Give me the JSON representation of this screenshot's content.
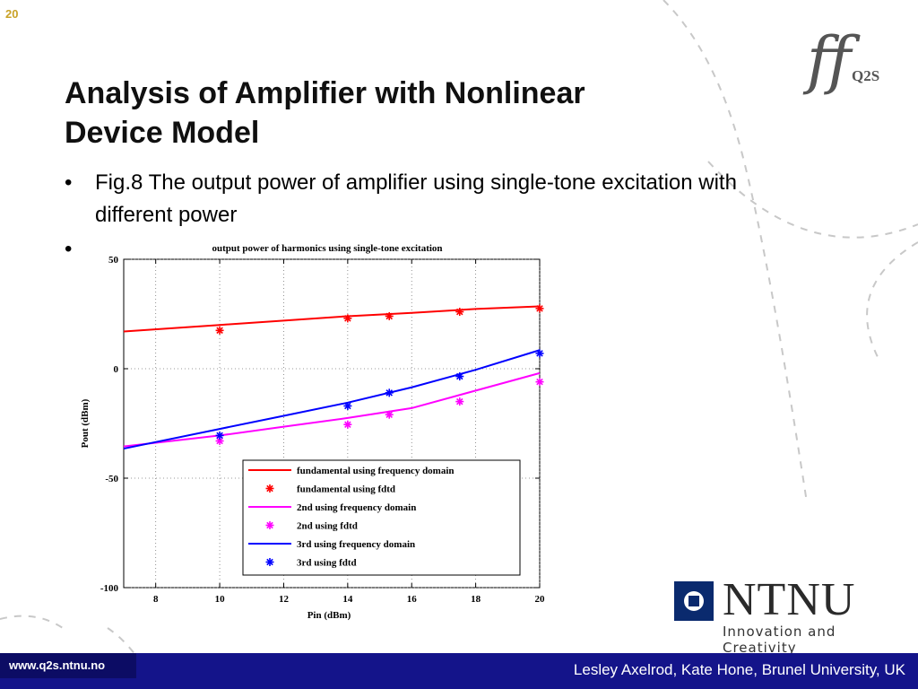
{
  "slide": {
    "number": "20",
    "title_lines": [
      "Analysis of Amplifier with Nonlinear",
      "Device Model"
    ],
    "bullets": [
      "Fig.8 The output power of amplifier using single-tone excitation with different power",
      ""
    ],
    "bullet_symbol": "•",
    "logo": {
      "ff": "ff",
      "text": "Q2S"
    },
    "ntnu": {
      "name": "NTNU",
      "tagline": "Innovation and Creativity",
      "color": "#0a2a6e"
    },
    "footer": {
      "url": "www.q2s.ntnu.no",
      "author": "Lesley Axelrod, Kate Hone, Brunel University, UK",
      "color": "#14148a"
    }
  },
  "chart_data": {
    "type": "line",
    "title": "output power of harmonics using single-tone excitation",
    "xlabel": "Pin (dBm)",
    "ylabel": "Pout (dBm)",
    "xlim": [
      7,
      20
    ],
    "ylim": [
      -100,
      50
    ],
    "xticks": [
      8,
      10,
      12,
      14,
      16,
      18,
      20
    ],
    "yticks": [
      50,
      0,
      -50,
      -100
    ],
    "grid": true,
    "legend_position": "bottom-right",
    "series": [
      {
        "name": "fundamental using frequency domain",
        "style": "line",
        "color": "#ff0000",
        "x": [
          7,
          10,
          12,
          14,
          16,
          18,
          20
        ],
        "y": [
          17,
          20,
          22,
          24,
          25.5,
          27.3,
          28.5
        ]
      },
      {
        "name": "fundamental using fdtd",
        "style": "marker",
        "color": "#ff0000",
        "x": [
          10,
          14,
          15.3,
          17.5,
          20
        ],
        "y": [
          17.5,
          23,
          24,
          26,
          27.5
        ]
      },
      {
        "name": "2nd using frequency domain",
        "style": "line",
        "color": "#ff00ff",
        "x": [
          7,
          10,
          12,
          14,
          16,
          18,
          20
        ],
        "y": [
          -35.5,
          -30.5,
          -26.5,
          -22.5,
          -18,
          -10,
          -2
        ]
      },
      {
        "name": "2nd using fdtd",
        "style": "marker",
        "color": "#ff00ff",
        "x": [
          10,
          14,
          15.3,
          17.5,
          20
        ],
        "y": [
          -33,
          -25.5,
          -21,
          -15,
          -6
        ]
      },
      {
        "name": "3rd using frequency domain",
        "style": "line",
        "color": "#0000ff",
        "x": [
          7,
          10,
          12,
          14,
          16,
          18,
          20
        ],
        "y": [
          -36.5,
          -27.5,
          -21.5,
          -15.5,
          -8.5,
          -0.5,
          8.5
        ]
      },
      {
        "name": "3rd using fdtd",
        "style": "marker",
        "color": "#0000ff",
        "x": [
          10,
          14,
          15.3,
          17.5,
          20
        ],
        "y": [
          -30.5,
          -17,
          -11,
          -3.5,
          7
        ]
      }
    ]
  }
}
